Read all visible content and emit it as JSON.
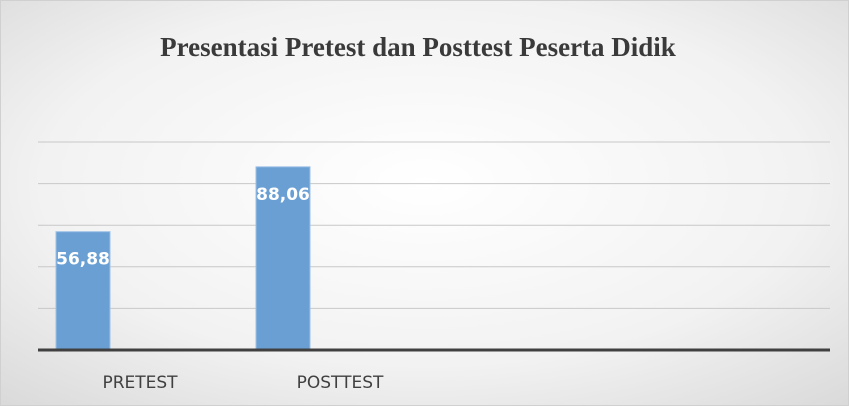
{
  "chart_data": {
    "type": "bar",
    "title": "Presentasi Pretest dan Posttest Peserta Didik",
    "categories": [
      "PRETEST",
      "POSTTEST"
    ],
    "values": [
      56.88,
      88.06
    ],
    "value_labels": [
      "56,88",
      "88,06"
    ],
    "color": "#6a9fd4",
    "ylim": [
      0,
      100
    ],
    "yticks": [
      0,
      20,
      40,
      60,
      80,
      100
    ],
    "grid": true
  }
}
